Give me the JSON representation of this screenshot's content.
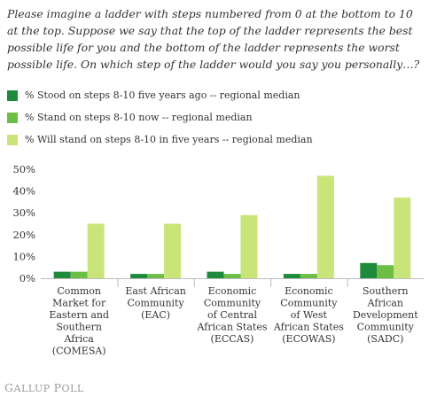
{
  "chart_data": {
    "type": "bar",
    "title": "Please imagine a ladder with steps numbered from 0 at the bottom to 10 at the top. Suppose we say that the top of the ladder represents the best possible life for you and the bottom of the ladder represents the worst possible life.  On which step of the ladder would you say you personally…?",
    "categories": [
      [
        "Common",
        "Market for",
        "Eastern and",
        "Southern",
        "Africa",
        "(COMESA)"
      ],
      [
        "East African",
        "Community",
        "(EAC)"
      ],
      [
        "Economic",
        "Community",
        "of Central",
        "African States",
        "(ECCAS)"
      ],
      [
        "Economic",
        "Community",
        "of West",
        "African States",
        "(ECOWAS)"
      ],
      [
        "Southern",
        "African",
        "Development",
        "Community",
        "(SADC)"
      ]
    ],
    "series": [
      {
        "name": "% Stood on steps 8-10 five years ago -- regional median",
        "color": "#1e8a3c",
        "values": [
          3,
          2,
          3,
          2,
          7
        ]
      },
      {
        "name": "% Stand on steps 8-10 now -- regional median",
        "color": "#6dbe45",
        "values": [
          3,
          2,
          2,
          2,
          6
        ]
      },
      {
        "name": "% Will stand on steps 8-10 in five years -- regional median",
        "color": "#c9e57a",
        "values": [
          25,
          25,
          29,
          47,
          37
        ]
      }
    ],
    "ylim": [
      0,
      50
    ],
    "yticks": [
      "0%",
      "10%",
      "20%",
      "30%",
      "40%",
      "50%"
    ],
    "grid": false,
    "legend_position": "top-left"
  },
  "footer": {
    "brand_first": "G",
    "brand_rest1": "ALLUP ",
    "brand_p": "P",
    "brand_rest2": "OLL"
  }
}
